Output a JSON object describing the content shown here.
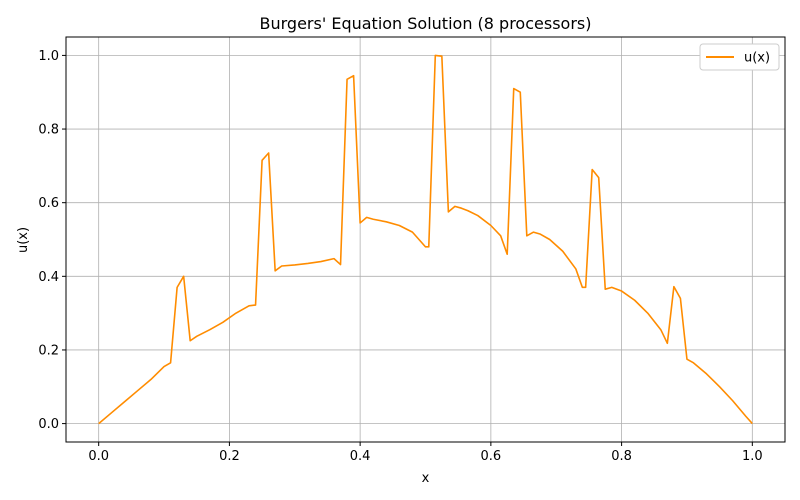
{
  "chart_data": {
    "type": "line",
    "title": "Burgers' Equation Solution (8 processors)",
    "xlabel": "x",
    "ylabel": "u(x)",
    "xlim": [
      -0.05,
      1.05
    ],
    "ylim": [
      -0.05,
      1.05
    ],
    "xticks": [
      0.0,
      0.2,
      0.4,
      0.6,
      0.8,
      1.0
    ],
    "xtick_labels": [
      "0.0",
      "0.2",
      "0.4",
      "0.6",
      "0.8",
      "1.0"
    ],
    "yticks": [
      0.0,
      0.2,
      0.4,
      0.6,
      0.8,
      1.0
    ],
    "ytick_labels": [
      "0.0",
      "0.2",
      "0.4",
      "0.6",
      "0.8",
      "1.0"
    ],
    "grid": true,
    "legend_position": "top-right",
    "series": [
      {
        "name": "u(x)",
        "color": "#ff8c00",
        "x": [
          0.0,
          0.02,
          0.04,
          0.06,
          0.08,
          0.1,
          0.11,
          0.12,
          0.13,
          0.14,
          0.15,
          0.17,
          0.19,
          0.21,
          0.23,
          0.24,
          0.25,
          0.26,
          0.27,
          0.28,
          0.3,
          0.32,
          0.34,
          0.36,
          0.37,
          0.38,
          0.39,
          0.4,
          0.41,
          0.42,
          0.44,
          0.46,
          0.48,
          0.5,
          0.505,
          0.515,
          0.525,
          0.535,
          0.545,
          0.555,
          0.565,
          0.58,
          0.6,
          0.615,
          0.625,
          0.635,
          0.645,
          0.655,
          0.665,
          0.675,
          0.69,
          0.71,
          0.73,
          0.74,
          0.745,
          0.755,
          0.765,
          0.775,
          0.785,
          0.8,
          0.82,
          0.84,
          0.86,
          0.87,
          0.88,
          0.89,
          0.9,
          0.91,
          0.93,
          0.95,
          0.97,
          0.99,
          1.0
        ],
        "y": [
          0.0,
          0.03,
          0.06,
          0.09,
          0.12,
          0.155,
          0.165,
          0.37,
          0.4,
          0.225,
          0.237,
          0.255,
          0.275,
          0.3,
          0.32,
          0.322,
          0.715,
          0.735,
          0.415,
          0.428,
          0.431,
          0.435,
          0.44,
          0.448,
          0.432,
          0.935,
          0.945,
          0.545,
          0.56,
          0.555,
          0.548,
          0.538,
          0.52,
          0.48,
          0.48,
          1.0,
          0.998,
          0.575,
          0.59,
          0.585,
          0.578,
          0.565,
          0.538,
          0.51,
          0.46,
          0.91,
          0.9,
          0.51,
          0.52,
          0.515,
          0.5,
          0.468,
          0.42,
          0.37,
          0.37,
          0.69,
          0.668,
          0.365,
          0.37,
          0.36,
          0.335,
          0.3,
          0.255,
          0.218,
          0.372,
          0.34,
          0.175,
          0.165,
          0.135,
          0.1,
          0.062,
          0.02,
          0.0
        ]
      }
    ]
  }
}
